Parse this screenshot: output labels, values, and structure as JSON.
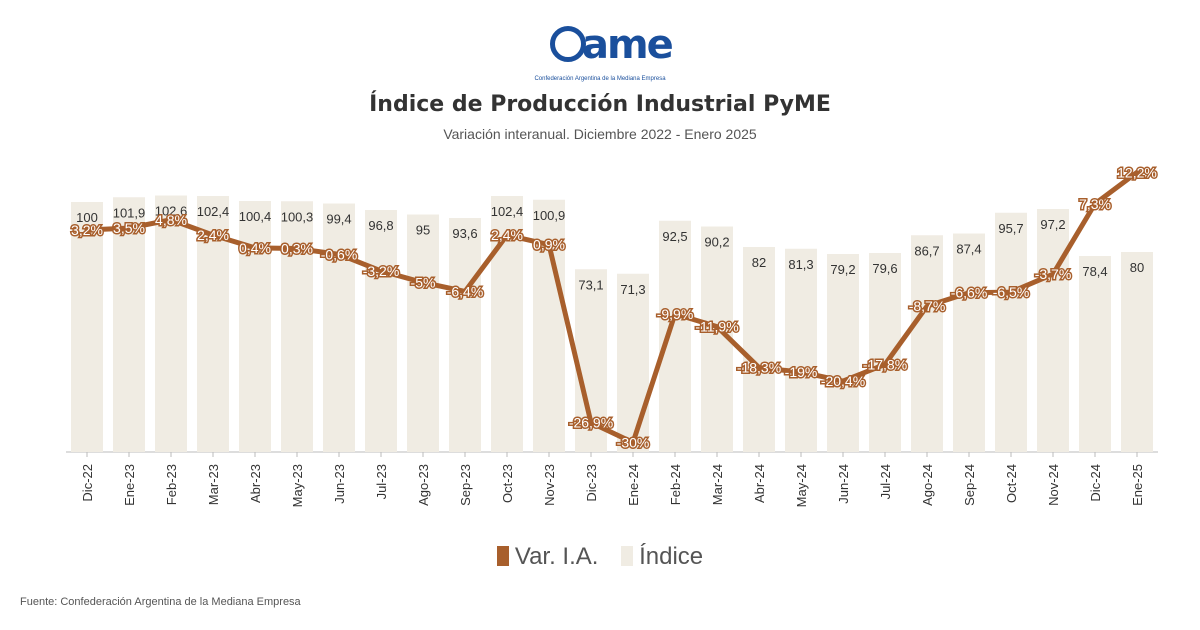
{
  "header": {
    "logo_text": "ame",
    "logo_subtitle": "Confederación Argentina de la Mediana Empresa",
    "title": "Índice de Producción Industrial PyME",
    "subtitle": "Variación interanual. Diciembre 2022 - Enero 2025"
  },
  "chart_data": {
    "type": "bar",
    "title": "Índice de Producción Industrial PyME",
    "subtitle": "Variación interanual. Diciembre 2022 - Enero 2025",
    "categories": [
      "Dic-22",
      "Ene-23",
      "Feb-23",
      "Mar-23",
      "Abr-23",
      "May-23",
      "Jun-23",
      "Jul-23",
      "Ago-23",
      "Sep-23",
      "Oct-23",
      "Nov-23",
      "Dic-23",
      "Ene-24",
      "Feb-24",
      "Mar-24",
      "Abr-24",
      "May-24",
      "Jun-24",
      "Jul-24",
      "Ago-24",
      "Sep-24",
      "Oct-24",
      "Nov-24",
      "Dic-24",
      "Ene-25"
    ],
    "series": [
      {
        "name": "Índice",
        "type": "bar",
        "color": "#f0ece3",
        "values": [
          100,
          101.9,
          102.6,
          102.4,
          100.4,
          100.3,
          99.4,
          96.8,
          95,
          93.6,
          102.4,
          100.9,
          73.1,
          71.3,
          92.5,
          90.2,
          82,
          81.3,
          79.2,
          79.6,
          86.7,
          87.4,
          95.7,
          97.2,
          78.4,
          80
        ],
        "labels": [
          "100",
          "101,9",
          "102,6",
          "102,4",
          "100,4",
          "100,3",
          "99,4",
          "96,8",
          "95",
          "93,6",
          "102,4",
          "100,9",
          "73,1",
          "71,3",
          "92,5",
          "90,2",
          "82",
          "81,3",
          "79,2",
          "79,6",
          "86,7",
          "87,4",
          "95,7",
          "97,2",
          "78,4",
          "80"
        ]
      },
      {
        "name": "Var. I.A.",
        "type": "line",
        "color": "#a85f2c",
        "values": [
          3.2,
          3.5,
          4.8,
          2.4,
          0.4,
          0.3,
          -0.6,
          -3.2,
          -5,
          -6.4,
          2.4,
          0.9,
          -26.9,
          -30,
          -9.9,
          -11.9,
          -18.3,
          -19,
          -20.4,
          -17.8,
          -8.7,
          -6.6,
          -6.5,
          -3.7,
          7.3,
          12.2
        ],
        "labels": [
          "3,2%",
          "3,5%",
          "4,8%",
          "2,4%",
          "0,4%",
          "0,3%",
          "-0,6%",
          "-3,2%",
          "-5%",
          "-6,4%",
          "2,4%",
          "0,9%",
          "-26,9%",
          "-30%",
          "-9,9%",
          "-11,9%",
          "-18,3%",
          "-19%",
          "-20,4%",
          "-17,8%",
          "-8,7%",
          "-6,6%",
          "-6,5%",
          "-3,7%",
          "7,3%",
          "12,2%"
        ]
      }
    ],
    "legend": [
      "Var. I.A.",
      "Índice"
    ],
    "legend_position": "bottom"
  },
  "footer": {
    "source": "Fuente: Confederación Argentina de la Mediana Empresa"
  }
}
